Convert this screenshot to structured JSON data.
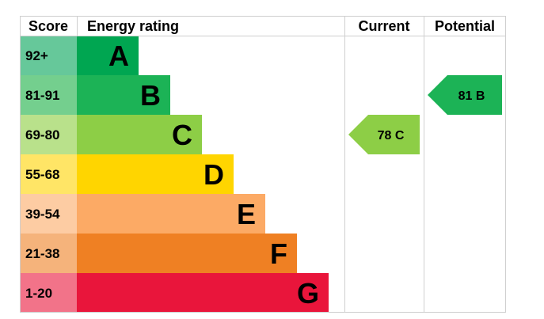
{
  "chart_data": {
    "type": "bar",
    "headers": {
      "score": "Score",
      "rating": "Energy rating",
      "current": "Current",
      "potential": "Potential"
    },
    "bands": [
      {
        "score": "92+",
        "letter": "A",
        "color": "#00a651",
        "score_bg": "#66c89a"
      },
      {
        "score": "81-91",
        "letter": "B",
        "color": "#1cb356",
        "score_bg": "#74cf8e"
      },
      {
        "score": "69-80",
        "letter": "C",
        "color": "#8dce46",
        "score_bg": "#b9e18b"
      },
      {
        "score": "55-68",
        "letter": "D",
        "color": "#ffd500",
        "score_bg": "#ffe566"
      },
      {
        "score": "39-54",
        "letter": "E",
        "color": "#fcaa65",
        "score_bg": "#fdcca3"
      },
      {
        "score": "21-38",
        "letter": "F",
        "color": "#ef8023",
        "score_bg": "#f5b37b"
      },
      {
        "score": "1-20",
        "letter": "G",
        "color": "#e9153b",
        "score_bg": "#f27389"
      }
    ],
    "current": {
      "value": 78,
      "letter": "C",
      "label": "78  C",
      "color": "#8dce46"
    },
    "potential": {
      "value": 81,
      "letter": "B",
      "label": "81  B",
      "color": "#1cb356"
    }
  }
}
